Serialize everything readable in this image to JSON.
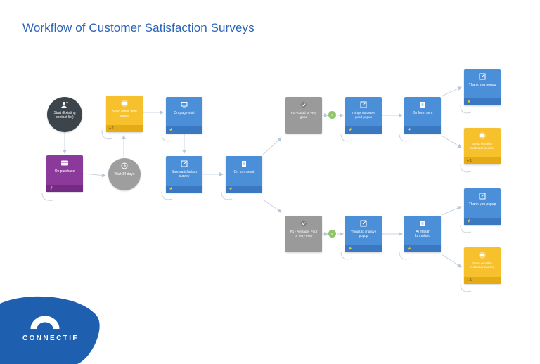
{
  "title": "Workflow of Customer Satisfaction Surveys",
  "brand": "CONNECTIF",
  "nodes": {
    "start": "Start (Existing contact list)",
    "on_purchase": "On purchase",
    "send_email_survey": "Send email with survey",
    "wait": "Wait 14 days",
    "on_page_visit": "On page visit",
    "sale_survey": "Sale satisfaction survey",
    "on_form_sent_main": "On form sent",
    "good": "P1 - Good or Very good",
    "bad": "P1 - Average, Poor or Very Poor",
    "good_popup": "Things that were good popup",
    "improve_popup": "Things to improve popup",
    "on_form_sent_top": "On form sent",
    "ai_enviar": "Al enviar formulario",
    "thanks_top": "Thank you popup",
    "thanks_bottom": "Thank you popup",
    "coupon_top": "Send email to customer service",
    "coupon_bottom": "Send email to customer service"
  },
  "badges": {
    "yes_top": "Si",
    "yes_bottom": "Si",
    "count": "1"
  },
  "colors": {
    "blue": "#4a8fd8",
    "yellow": "#f7c02d",
    "purple": "#8b3a9b",
    "grey": "#9a9a9a",
    "dark": "#3c444c",
    "title": "#2a63b8",
    "brand": "#1f5fb0"
  }
}
